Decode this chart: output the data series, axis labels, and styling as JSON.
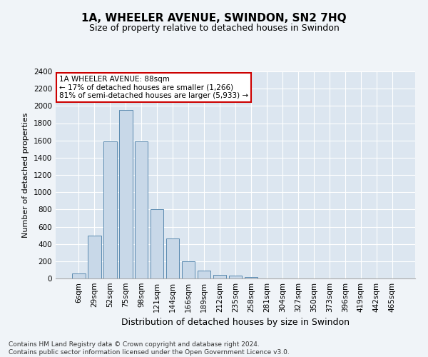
{
  "title": "1A, WHEELER AVENUE, SWINDON, SN2 7HQ",
  "subtitle": "Size of property relative to detached houses in Swindon",
  "xlabel": "Distribution of detached houses by size in Swindon",
  "ylabel": "Number of detached properties",
  "bar_color": "#c8d8e8",
  "bar_edge_color": "#5a8ab0",
  "categories": [
    "6sqm",
    "29sqm",
    "52sqm",
    "75sqm",
    "98sqm",
    "121sqm",
    "144sqm",
    "166sqm",
    "189sqm",
    "212sqm",
    "235sqm",
    "258sqm",
    "281sqm",
    "304sqm",
    "327sqm",
    "350sqm",
    "373sqm",
    "396sqm",
    "419sqm",
    "442sqm",
    "465sqm"
  ],
  "values": [
    60,
    500,
    1590,
    1950,
    1590,
    800,
    465,
    200,
    95,
    40,
    30,
    20,
    0,
    0,
    0,
    0,
    0,
    0,
    0,
    0,
    0
  ],
  "ylim": [
    0,
    2400
  ],
  "yticks": [
    0,
    200,
    400,
    600,
    800,
    1000,
    1200,
    1400,
    1600,
    1800,
    2000,
    2200,
    2400
  ],
  "annotation_line1": "1A WHEELER AVENUE: 88sqm",
  "annotation_line2": "← 17% of detached houses are smaller (1,266)",
  "annotation_line3": "81% of semi-detached houses are larger (5,933) →",
  "annotation_box_facecolor": "#ffffff",
  "annotation_box_edgecolor": "#cc0000",
  "footer_line1": "Contains HM Land Registry data © Crown copyright and database right 2024.",
  "footer_line2": "Contains public sector information licensed under the Open Government Licence v3.0.",
  "fig_facecolor": "#f0f4f8",
  "plot_facecolor": "#dce6f0",
  "grid_color": "#ffffff",
  "title_fontsize": 11,
  "subtitle_fontsize": 9,
  "ylabel_fontsize": 8,
  "xlabel_fontsize": 9,
  "tick_fontsize": 7.5,
  "annotation_fontsize": 7.5,
  "footer_fontsize": 6.5
}
